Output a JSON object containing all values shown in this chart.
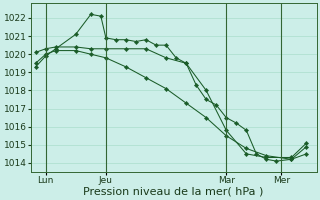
{
  "background_color": "#cceee8",
  "grid_color": "#aaddcc",
  "line_color": "#1a5c28",
  "ylim": [
    1013.5,
    1022.8
  ],
  "yticks": [
    1014,
    1015,
    1016,
    1017,
    1018,
    1019,
    1020,
    1021,
    1022
  ],
  "xlabel": "Pression niveau de la mer( hPa )",
  "xlabel_fontsize": 8,
  "tick_fontsize": 6.5,
  "tick_color": "#1a3a1a",
  "xtick_labels": [
    "Lun",
    "Jeu",
    "Mar",
    "Mer"
  ],
  "xtick_positions": [
    6,
    30,
    78,
    100
  ],
  "xlim": [
    0,
    114
  ],
  "vline_color": "#336633",
  "vline_positions": [
    6,
    30,
    78,
    100
  ],
  "series1_x": [
    2,
    6,
    10,
    18,
    24,
    28,
    30,
    34,
    38,
    42,
    46,
    50,
    54,
    58,
    62,
    66,
    70,
    74,
    78,
    82,
    86,
    90,
    94,
    98,
    104,
    110
  ],
  "series1_y": [
    1019.3,
    1019.9,
    1020.3,
    1021.1,
    1022.2,
    1022.1,
    1020.9,
    1020.8,
    1020.8,
    1020.7,
    1020.8,
    1020.5,
    1020.5,
    1019.8,
    1019.5,
    1018.3,
    1017.5,
    1017.2,
    1016.5,
    1016.2,
    1015.8,
    1014.5,
    1014.2,
    1014.1,
    1014.2,
    1014.9
  ],
  "series2_x": [
    2,
    6,
    10,
    18,
    24,
    30,
    38,
    46,
    54,
    62,
    70,
    78,
    86,
    94,
    104,
    110
  ],
  "series2_y": [
    1020.1,
    1020.3,
    1020.4,
    1020.4,
    1020.3,
    1020.3,
    1020.3,
    1020.3,
    1019.8,
    1019.5,
    1018.0,
    1015.8,
    1014.5,
    1014.3,
    1014.3,
    1015.1
  ],
  "series3_x": [
    2,
    6,
    10,
    18,
    24,
    30,
    38,
    46,
    54,
    62,
    70,
    78,
    86,
    94,
    104,
    110
  ],
  "series3_y": [
    1019.5,
    1020.0,
    1020.2,
    1020.2,
    1020.0,
    1019.8,
    1019.3,
    1018.7,
    1018.1,
    1017.3,
    1016.5,
    1015.5,
    1014.8,
    1014.4,
    1014.2,
    1014.5
  ]
}
